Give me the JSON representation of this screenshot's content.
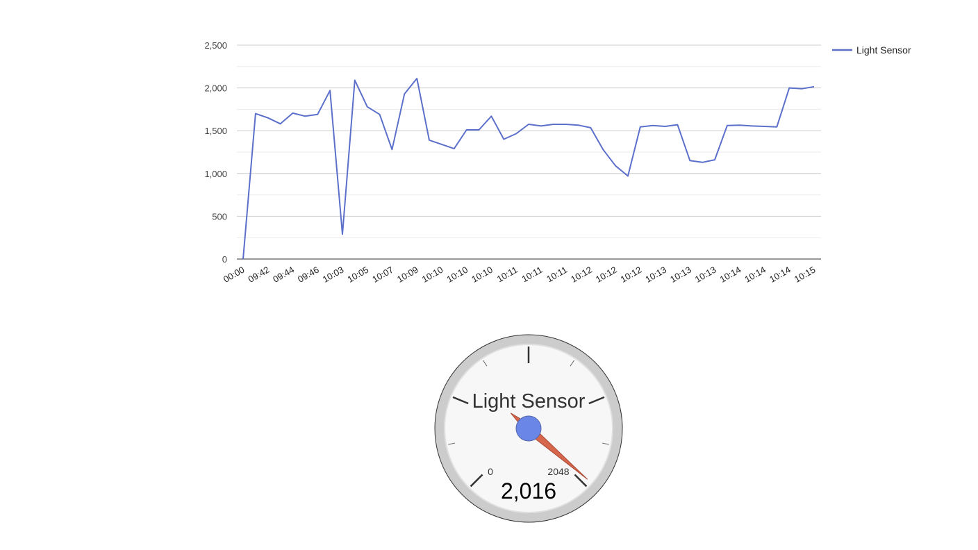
{
  "chart_data": [
    {
      "type": "line",
      "ylim": [
        0,
        2500
      ],
      "y_ticks": [
        "0",
        "500",
        "1,000",
        "1,500",
        "2,000",
        "2,500"
      ],
      "grid": true,
      "legend_position": "right",
      "x_tick_labels": [
        "00:00",
        "09:42",
        "09:44",
        "09:46",
        "10:03",
        "10:05",
        "10:07",
        "10:09",
        "10:10",
        "10:10",
        "10:10",
        "10:11",
        "10:11",
        "10:11",
        "10:12",
        "10:12",
        "10:12",
        "10:13",
        "10:13",
        "10:13",
        "10:14",
        "10:14",
        "10:14",
        "10:15"
      ],
      "series": [
        {
          "name": "Light Sensor",
          "color": "#5b6fcb",
          "values": [
            0,
            1700,
            1650,
            1580,
            1705,
            1670,
            1690,
            1970,
            290,
            2090,
            1780,
            1690,
            1280,
            1930,
            2110,
            1390,
            1340,
            1290,
            1510,
            1510,
            1670,
            1400,
            1465,
            1575,
            1555,
            1575,
            1575,
            1565,
            1535,
            1280,
            1090,
            970,
            1545,
            1560,
            1550,
            1570,
            1150,
            1130,
            1160,
            1560,
            1565,
            1555,
            1550,
            1545,
            2000,
            1990,
            2015
          ]
        }
      ]
    },
    {
      "type": "gauge",
      "title": "Light Sensor",
      "min": 0,
      "max": 2048,
      "min_label": "0",
      "max_label": "2048",
      "value": 2016,
      "value_label": "2,016",
      "needle_color": "#d6674c",
      "hub_color": "#6a87e8"
    }
  ]
}
